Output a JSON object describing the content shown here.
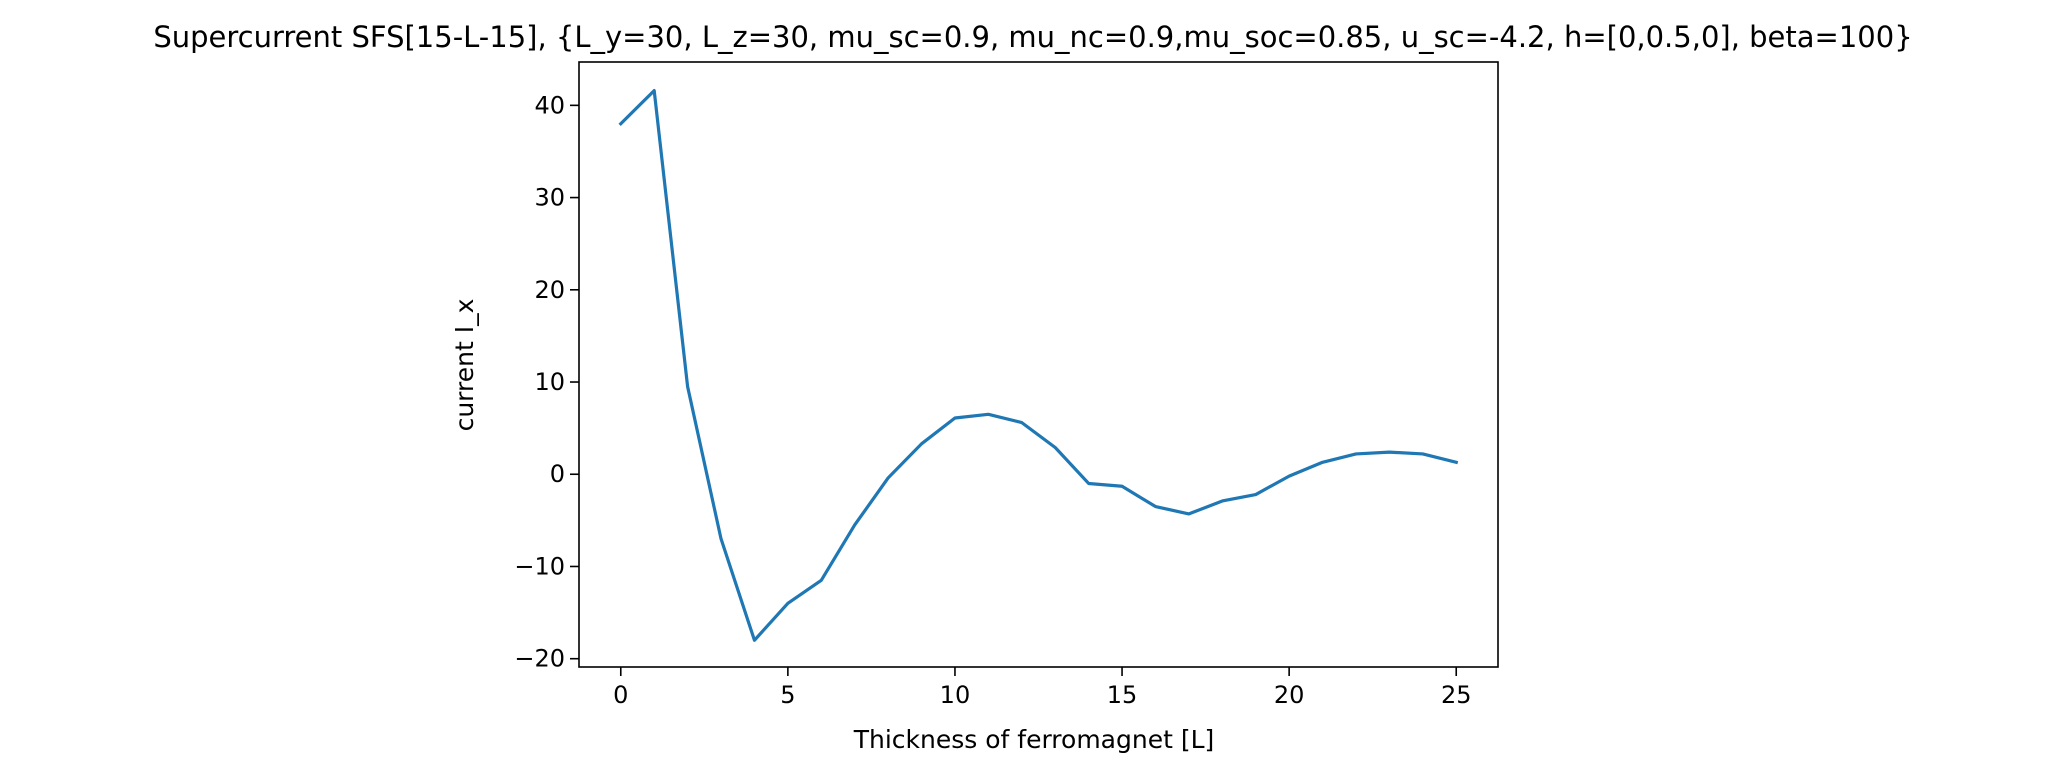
{
  "chart_data": {
    "type": "line",
    "title": "Supercurrent SFS[15-L-15], {L_y=30, L_z=30, mu_sc=0.9, mu_nc=0.9,mu_soc=0.85, u_sc=-4.2, h=[0,0.5,0], beta=100}",
    "xlabel": "Thickness of ferromagnet [L]",
    "ylabel": "current I_x",
    "xlim": [
      -1.25,
      26.25
    ],
    "ylim": [
      -20.9,
      44.7
    ],
    "x_ticks": [
      0,
      5,
      10,
      15,
      20,
      25
    ],
    "y_ticks": [
      -20,
      -10,
      0,
      10,
      20,
      30,
      40
    ],
    "grid": false,
    "line_color": "#1f77b4",
    "series": [
      {
        "x": [
          0,
          1,
          2,
          3,
          4,
          5,
          6,
          7,
          8,
          9,
          10,
          11,
          12,
          13,
          14,
          15,
          16,
          17,
          18,
          19,
          20,
          21,
          22,
          23,
          24,
          25
        ],
        "values": [
          38.0,
          41.6,
          9.5,
          -7.0,
          -18.0,
          -14.0,
          -11.5,
          -5.5,
          -0.4,
          3.3,
          6.1,
          6.5,
          5.6,
          2.9,
          -1.0,
          -1.3,
          -3.5,
          -4.3,
          -2.9,
          -2.2,
          -0.2,
          1.3,
          2.2,
          2.4,
          2.2,
          1.3
        ]
      }
    ]
  }
}
